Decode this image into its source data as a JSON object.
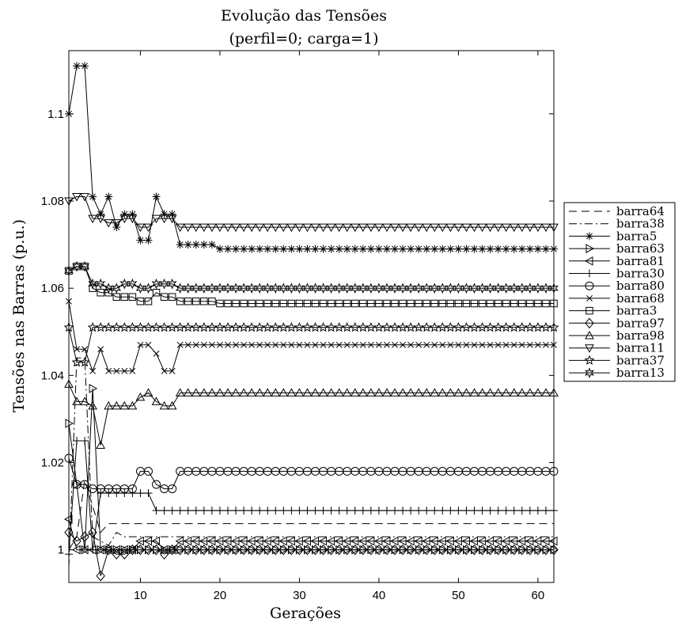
{
  "chart_data": {
    "type": "line",
    "title": "Evolução das Tensões",
    "subtitle": "(perfil=0; carga=1)",
    "xlabel": "Gerações",
    "ylabel": "Tensões nas Barras (p.u.)",
    "xlim": [
      1,
      62
    ],
    "ylim": [
      0.9925,
      1.1145
    ],
    "xticks": [
      10,
      20,
      30,
      40,
      50,
      60
    ],
    "xtick_labels": [
      "10",
      "20",
      "30",
      "40",
      "50",
      "60"
    ],
    "yticks": [
      1.0,
      1.02,
      1.04,
      1.06,
      1.08,
      1.1
    ],
    "ytick_labels": [
      "1",
      "1.02",
      "1.04",
      "1.06",
      "1.08",
      "1.1"
    ],
    "grid": false,
    "legend_position": "right",
    "series": [
      {
        "name": "barra64",
        "marker": "none",
        "dash": "dashed",
        "start": [
          [
            1,
            1.0
          ],
          [
            2,
            1.003
          ],
          [
            3,
            1.016
          ],
          [
            4,
            1.01
          ],
          [
            5,
            1.004
          ],
          [
            6,
            1.006
          ]
        ],
        "final": 1.006
      },
      {
        "name": "barra38",
        "marker": "none",
        "dash": "dashdot",
        "start": [
          [
            1,
            0.996
          ],
          [
            2,
            1.044
          ],
          [
            3,
            1.044
          ],
          [
            4,
            1.003
          ],
          [
            5,
            1.002
          ],
          [
            6,
            1.001
          ],
          [
            7,
            1.004
          ],
          [
            8,
            1.003
          ]
        ],
        "final": 1.003
      },
      {
        "name": "barra5",
        "marker": "asterisk",
        "dash": "solid",
        "start": [
          [
            1,
            1.1
          ],
          [
            2,
            1.111
          ],
          [
            3,
            1.111
          ],
          [
            4,
            1.081
          ],
          [
            5,
            1.077
          ],
          [
            6,
            1.081
          ],
          [
            7,
            1.074
          ],
          [
            8,
            1.077
          ],
          [
            9,
            1.077
          ],
          [
            10,
            1.071
          ],
          [
            11,
            1.071
          ],
          [
            12,
            1.081
          ],
          [
            13,
            1.077
          ],
          [
            14,
            1.077
          ],
          [
            15,
            1.07
          ],
          [
            16,
            1.07
          ],
          [
            17,
            1.07
          ],
          [
            18,
            1.07
          ],
          [
            19,
            1.07
          ]
        ],
        "final": 1.069
      },
      {
        "name": "barra63",
        "marker": "tri-right",
        "dash": "solid",
        "start": [
          [
            1,
            1.029
          ],
          [
            2,
            1.015
          ],
          [
            3,
            1.0
          ],
          [
            4,
            1.037
          ],
          [
            5,
            1.0
          ],
          [
            6,
            1.0
          ],
          [
            7,
            1.0
          ],
          [
            8,
            1.0
          ],
          [
            9,
            1.0
          ],
          [
            10,
            1.0
          ],
          [
            11,
            1.0
          ],
          [
            12,
            1.0
          ],
          [
            13,
            1.0
          ],
          [
            14,
            1.0
          ]
        ],
        "final": 1.0
      },
      {
        "name": "barra81",
        "marker": "tri-left",
        "dash": "solid",
        "start": [
          [
            1,
            1.007
          ],
          [
            2,
            1.0
          ],
          [
            3,
            1.0
          ],
          [
            4,
            1.0
          ],
          [
            5,
            1.0
          ],
          [
            6,
            1.0
          ],
          [
            7,
            1.0
          ],
          [
            8,
            1.0
          ],
          [
            9,
            1.0
          ],
          [
            10,
            1.002
          ],
          [
            11,
            1.002
          ],
          [
            12,
            1.002
          ],
          [
            13,
            1.0
          ],
          [
            14,
            1.0
          ]
        ],
        "final": 1.002
      },
      {
        "name": "barra30",
        "marker": "plus",
        "dash": "solid",
        "start": [
          [
            1,
            0.999
          ],
          [
            2,
            1.025
          ],
          [
            3,
            1.025
          ],
          [
            4,
            1.0
          ],
          [
            5,
            1.013
          ],
          [
            6,
            1.013
          ],
          [
            7,
            1.013
          ],
          [
            8,
            1.013
          ],
          [
            9,
            1.013
          ],
          [
            10,
            1.013
          ],
          [
            11,
            1.013
          ],
          [
            12,
            1.009
          ],
          [
            13,
            1.009
          ],
          [
            14,
            1.009
          ]
        ],
        "final": 1.009
      },
      {
        "name": "barra80",
        "marker": "circle",
        "dash": "solid",
        "start": [
          [
            1,
            1.021
          ],
          [
            2,
            1.015
          ],
          [
            3,
            1.015
          ],
          [
            4,
            1.014
          ],
          [
            5,
            1.014
          ],
          [
            6,
            1.014
          ],
          [
            7,
            1.014
          ],
          [
            8,
            1.014
          ],
          [
            9,
            1.014
          ],
          [
            10,
            1.018
          ],
          [
            11,
            1.018
          ],
          [
            12,
            1.015
          ],
          [
            13,
            1.014
          ],
          [
            14,
            1.014
          ]
        ],
        "final": 1.018
      },
      {
        "name": "barra68",
        "marker": "cross",
        "dash": "solid",
        "start": [
          [
            1,
            1.057
          ],
          [
            2,
            1.046
          ],
          [
            3,
            1.046
          ],
          [
            4,
            1.041
          ],
          [
            5,
            1.046
          ],
          [
            6,
            1.041
          ],
          [
            7,
            1.041
          ],
          [
            8,
            1.041
          ],
          [
            9,
            1.041
          ],
          [
            10,
            1.047
          ],
          [
            11,
            1.047
          ],
          [
            12,
            1.045
          ],
          [
            13,
            1.041
          ],
          [
            14,
            1.041
          ]
        ],
        "final": 1.047
      },
      {
        "name": "barra3",
        "marker": "square",
        "dash": "solid",
        "start": [
          [
            1,
            1.064
          ],
          [
            2,
            1.065
          ],
          [
            3,
            1.065
          ],
          [
            4,
            1.06
          ],
          [
            5,
            1.059
          ],
          [
            6,
            1.059
          ],
          [
            7,
            1.058
          ],
          [
            8,
            1.058
          ],
          [
            9,
            1.058
          ],
          [
            10,
            1.057
          ],
          [
            11,
            1.057
          ],
          [
            12,
            1.059
          ],
          [
            13,
            1.058
          ],
          [
            14,
            1.058
          ],
          [
            15,
            1.057
          ],
          [
            16,
            1.057
          ],
          [
            17,
            1.057
          ],
          [
            18,
            1.057
          ],
          [
            19,
            1.057
          ]
        ],
        "final": 1.0565
      },
      {
        "name": "barra97",
        "marker": "diamond",
        "dash": "solid",
        "start": [
          [
            1,
            1.004
          ],
          [
            2,
            1.002
          ],
          [
            3,
            1.003
          ],
          [
            4,
            1.004
          ],
          [
            5,
            0.994
          ],
          [
            6,
            1.0
          ],
          [
            7,
            0.999
          ],
          [
            8,
            0.999
          ],
          [
            9,
            1.0
          ],
          [
            10,
            1.0
          ],
          [
            11,
            1.0
          ],
          [
            12,
            1.0
          ],
          [
            13,
            0.999
          ],
          [
            14,
            1.0
          ]
        ],
        "final": 1.0
      },
      {
        "name": "barra98",
        "marker": "triangle-up",
        "dash": "solid",
        "start": [
          [
            1,
            1.038
          ],
          [
            2,
            1.034
          ],
          [
            3,
            1.034
          ],
          [
            4,
            1.033
          ],
          [
            5,
            1.024
          ],
          [
            6,
            1.033
          ],
          [
            7,
            1.033
          ],
          [
            8,
            1.033
          ],
          [
            9,
            1.033
          ],
          [
            10,
            1.035
          ],
          [
            11,
            1.036
          ],
          [
            12,
            1.034
          ],
          [
            13,
            1.033
          ],
          [
            14,
            1.033
          ]
        ],
        "final": 1.036
      },
      {
        "name": "barra11",
        "marker": "triangle-down",
        "dash": "solid",
        "start": [
          [
            1,
            1.08
          ],
          [
            2,
            1.081
          ],
          [
            3,
            1.081
          ],
          [
            4,
            1.076
          ],
          [
            5,
            1.076
          ],
          [
            6,
            1.075
          ],
          [
            7,
            1.075
          ],
          [
            8,
            1.076
          ],
          [
            9,
            1.076
          ],
          [
            10,
            1.074
          ],
          [
            11,
            1.074
          ],
          [
            12,
            1.076
          ],
          [
            13,
            1.076
          ],
          [
            14,
            1.076
          ],
          [
            15,
            1.074
          ],
          [
            16,
            1.074
          ],
          [
            17,
            1.074
          ],
          [
            18,
            1.074
          ],
          [
            19,
            1.074
          ]
        ],
        "final": 1.074
      },
      {
        "name": "barra37",
        "marker": "pentagram",
        "dash": "solid",
        "start": [
          [
            1,
            1.051
          ],
          [
            2,
            1.043
          ],
          [
            3,
            1.043
          ],
          [
            4,
            1.051
          ],
          [
            5,
            1.051
          ],
          [
            6,
            1.051
          ],
          [
            7,
            1.051
          ],
          [
            8,
            1.051
          ],
          [
            9,
            1.051
          ],
          [
            10,
            1.051
          ],
          [
            11,
            1.051
          ],
          [
            12,
            1.051
          ],
          [
            13,
            1.051
          ],
          [
            14,
            1.051
          ]
        ],
        "final": 1.051
      },
      {
        "name": "barra13",
        "marker": "hexagram",
        "dash": "solid",
        "start": [
          [
            1,
            1.064
          ],
          [
            2,
            1.065
          ],
          [
            3,
            1.065
          ],
          [
            4,
            1.061
          ],
          [
            5,
            1.061
          ],
          [
            6,
            1.06
          ],
          [
            7,
            1.06
          ],
          [
            8,
            1.061
          ],
          [
            9,
            1.061
          ],
          [
            10,
            1.06
          ],
          [
            11,
            1.06
          ],
          [
            12,
            1.061
          ],
          [
            13,
            1.061
          ],
          [
            14,
            1.061
          ]
        ],
        "final": 1.06
      }
    ]
  }
}
